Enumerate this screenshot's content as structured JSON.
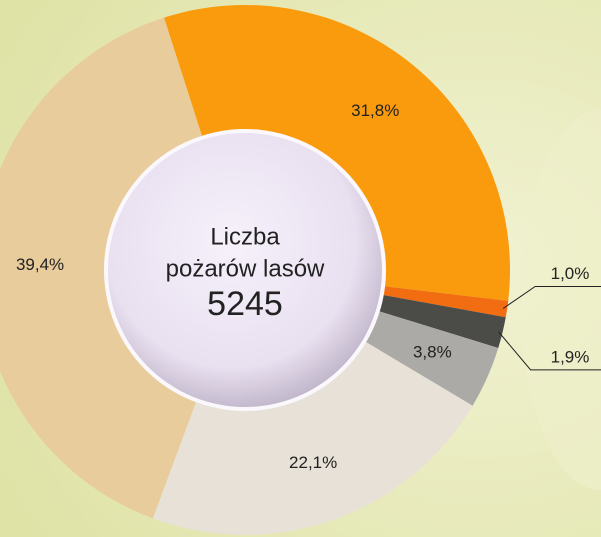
{
  "chart_data": {
    "type": "donut",
    "center_text": [
      "Liczba",
      "pożarów lasów"
    ],
    "total": 5245,
    "values": [
      31.8,
      1.0,
      1.9,
      3.8,
      22.1,
      39.4
    ],
    "value_labels": [
      "31,8%",
      "1,0%",
      "1,9%",
      "3,8%",
      "22,1%",
      "39,4%"
    ],
    "colors": [
      "#f99b0c",
      "#f26c12",
      "#4b4b48",
      "#abaaa6",
      "#e7e1d7",
      "#e9cc9b"
    ]
  }
}
